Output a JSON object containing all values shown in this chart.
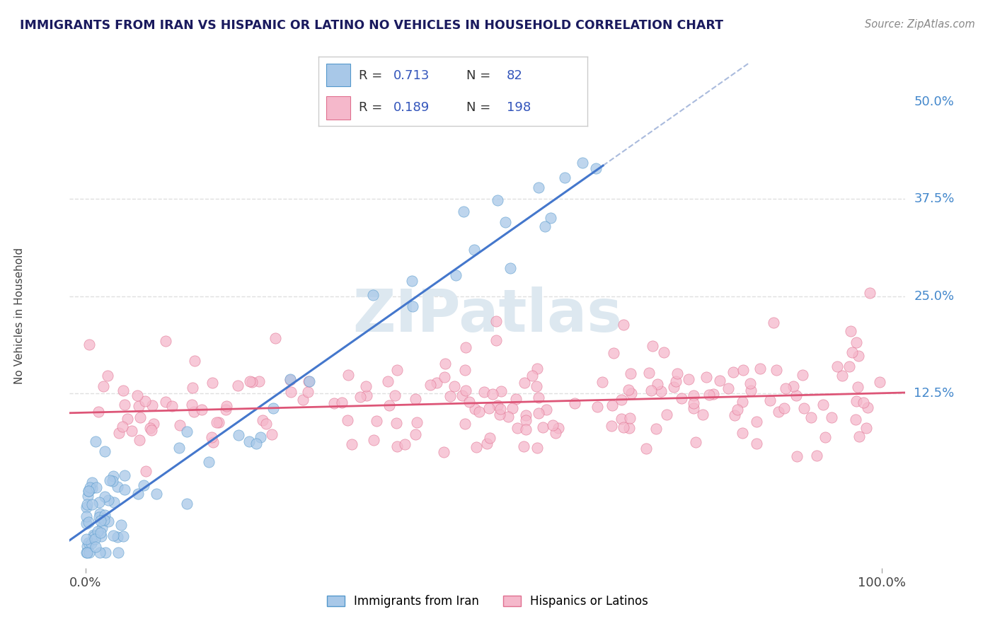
{
  "title": "IMMIGRANTS FROM IRAN VS HISPANIC OR LATINO NO VEHICLES IN HOUSEHOLD CORRELATION CHART",
  "source": "Source: ZipAtlas.com",
  "ylabel": "No Vehicles in Household",
  "legend_blue_R": "0.713",
  "legend_blue_N": "82",
  "legend_pink_R": "0.189",
  "legend_pink_N": "198",
  "legend_label_blue": "Immigrants from Iran",
  "legend_label_pink": "Hispanics or Latinos",
  "blue_color": "#a8c8e8",
  "blue_edge_color": "#5599cc",
  "pink_color": "#f5b8cb",
  "pink_edge_color": "#e07090",
  "blue_line_color": "#4477cc",
  "pink_line_color": "#dd5577",
  "title_color": "#1a1a5e",
  "source_color": "#888888",
  "legend_R_N_color": "#3355bb",
  "background_color": "#ffffff",
  "grid_color": "#e0e0e0",
  "watermark_color": "#dde8f0",
  "ytick_color": "#4488cc",
  "blue_line_intercept": -5.0,
  "blue_line_slope": 0.72,
  "pink_line_intercept": 10.0,
  "pink_line_slope": 0.025
}
